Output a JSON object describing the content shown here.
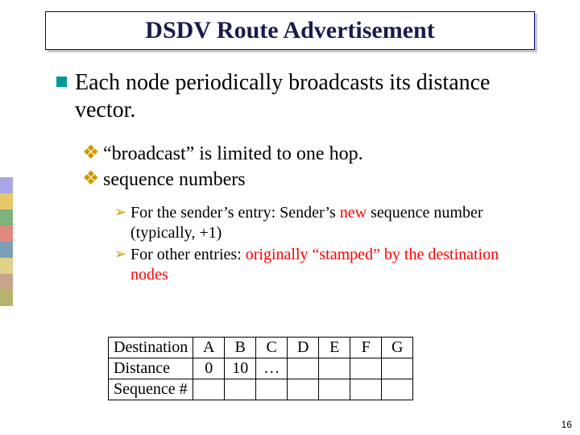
{
  "title": "DSDV Route Advertisement",
  "colors": {
    "title_border": "#000080",
    "title_text": "#1a1a4d",
    "l1_bullet": "#009999",
    "l2_bullet": "#cc9900",
    "l3_bullet": "#cc9900",
    "accent": "#ff0000",
    "table_border": "#000000",
    "stripe": [
      "#a7a7e6",
      "#e8c96a",
      "#7fb27d",
      "#e0897f",
      "#7ba0b8",
      "#e0d18a",
      "#c6a58b",
      "#b7b36e"
    ]
  },
  "bullets": {
    "l1": {
      "text": "Each node periodically broadcasts its distance vector."
    },
    "l2": [
      {
        "text": "“broadcast” is limited to one hop."
      },
      {
        "text": "sequence numbers"
      }
    ],
    "l3": [
      {
        "pre": "For the sender’s entry: Sender’s ",
        "accent": "new",
        "post": " sequence number (typically, +1)"
      },
      {
        "pre": "For other entries: ",
        "accent": "originally “stamped” by the destination nodes",
        "post": ""
      }
    ]
  },
  "table": {
    "row_labels": [
      "Destination",
      "Distance",
      "Sequence #"
    ],
    "cols": [
      "A",
      "B",
      "C",
      "D",
      "E",
      "F",
      "G"
    ],
    "rows": [
      [
        "A",
        "B",
        "C",
        "D",
        "E",
        "F",
        "G"
      ],
      [
        "0",
        "10",
        "…",
        "",
        "",
        "",
        ""
      ],
      [
        "",
        "",
        "",
        "",
        "",
        "",
        ""
      ]
    ]
  },
  "page_number": "16",
  "fonts": {
    "title_pt": 30,
    "l1_pt": 28,
    "l2_pt": 24,
    "l3_pt": 20,
    "table_pt": 20
  }
}
